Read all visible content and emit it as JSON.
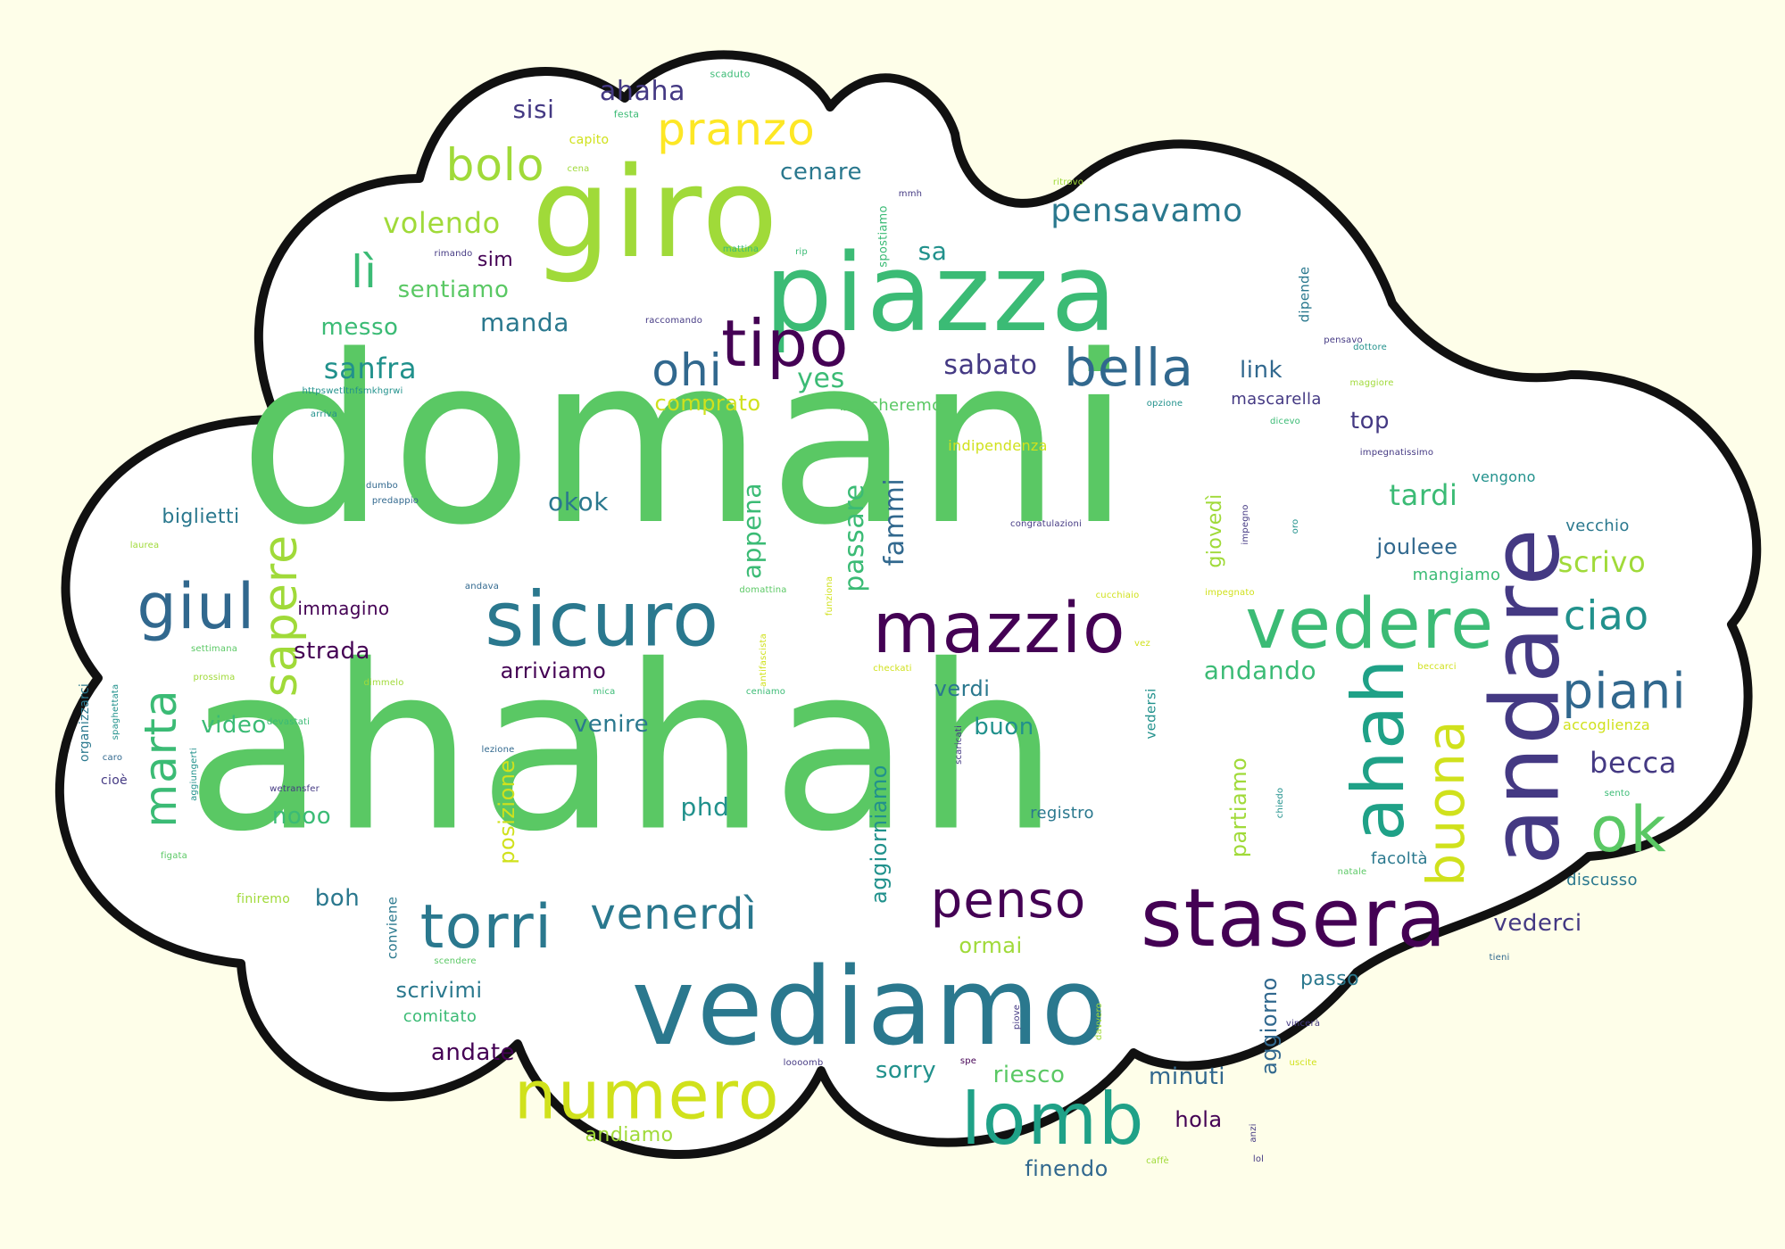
{
  "colors": {
    "background": "#fefee9",
    "cloud_fill": "#ffffff",
    "cloud_outline": "#111111",
    "palette": [
      "#5ac864",
      "#a0da39",
      "#3bbb75",
      "#2a788e",
      "#443983",
      "#440154",
      "#21918c",
      "#fde725",
      "#31688e",
      "#1fa187",
      "#d0e11c"
    ]
  },
  "words": {
    "domani": "domani",
    "ahahah": "ahahah",
    "giro": "giro",
    "piazza": "piazza",
    "vediamo": "vediamo",
    "andare": "andare",
    "stasera": "stasera",
    "sicuro": "sicuro",
    "mazzio": "mazzio",
    "vedere": "vedere",
    "lomb": "lomb",
    "numero": "numero",
    "torri": "torri",
    "ahah": "ahah",
    "tipo": "tipo",
    "giul": "giul",
    "ok": "ok",
    "buona": "buona",
    "bella": "bella",
    "penso": "penso",
    "pranzo": "pranzo",
    "venerdi": "venerdì",
    "sapere": "sapere",
    "piani": "piani",
    "marta": "marta",
    "bolo": "bolo",
    "ohi": "ohi",
    "li": "lì",
    "ciao": "ciao",
    "pensavamo": "pensavamo",
    "volendo": "volendo",
    "sanfra": "sanfra",
    "sabato": "sabato",
    "tardi": "tardi",
    "scrivo": "scrivo",
    "becca": "becca",
    "ahaha": "ahaha",
    "sisi": "sisi",
    "cenare": "cenare",
    "sentiamo": "sentiamo",
    "manda": "manda",
    "messo": "messo",
    "sim": "sim",
    "sa": "sa",
    "yes": "yes",
    "link": "link",
    "comprato": "comprato",
    "top": "top",
    "mascarella": "mascarella",
    "okok": "okok",
    "appena": "appena",
    "passare": "passare",
    "fammi": "fammi",
    "giovedi": "giovedì",
    "arriviamo": "arriviamo",
    "strada": "strada",
    "biglietti": "biglietti",
    "immagino": "immagino",
    "verdi": "verdi",
    "venire": "venire",
    "video": "video",
    "buon": "buon",
    "andando": "andando",
    "nooo": "nooo",
    "phd": "phd",
    "posizione": "posizione",
    "registro": "registro",
    "aggiorniamo": "aggiorniamo",
    "partiamo": "partiamo",
    "vederci": "vederci",
    "boh": "boh",
    "ormai": "ormai",
    "scrivimi": "scrivimi",
    "passo": "passo",
    "andate": "andate",
    "sorry": "sorry",
    "riesco": "riesco",
    "minuti": "minuti",
    "hola": "hola",
    "andiamo": "andiamo",
    "finendo": "finendo",
    "aggiorno": "aggiorno",
    "discusso": "discusso",
    "facolta": "facoltà",
    "vecchio": "vecchio",
    "mangiamo": "mangiamo",
    "vengono": "vengono",
    "joulee": "jouleee",
    "accoglienza": "accoglienza",
    "comitato": "comitato",
    "beccheremo": "beccheremo",
    "indipendenza": "indipendenza",
    "capito": "capito",
    "festa": "festa",
    "scaduto": "scaduto",
    "mattina": "mattina",
    "rip": "rip",
    "raccomando": "raccomando",
    "rimando": "rimando",
    "cena": "cena",
    "mmh": "mmh",
    "ritrovo": "ritrovo",
    "spostiamo": "spostiamo",
    "dipende": "dipende",
    "pensavo": "pensavo",
    "dottore": "dottore",
    "impegnatissimo": "impegnatissimo",
    "maggiore": "maggiore",
    "opzione": "opzione",
    "dicevo": "dicevo",
    "httpswetransfer": "httpswetltnfsmkhgrwi",
    "arriva": "arriva",
    "dumbo": "dumbo",
    "predappio": "predappio",
    "congratulazioni": "congratulazioni",
    "impegno": "impegno",
    "oro": "oro",
    "laurea": "laurea",
    "andava": "andava",
    "domattina": "domattina",
    "funziona": "funziona",
    "cucchiaio": "cucchiaio",
    "impegnato": "impegnato",
    "settimana": "settimana",
    "antifascista": "antifascista",
    "vez": "vez",
    "checkati": "checkati",
    "beccarci": "beccarci",
    "prossima": "prossima",
    "dimmelo": "dimmelo",
    "mica": "mica",
    "ceniamo": "ceniamo",
    "organizzarci": "organizzarci",
    "spaghettata": "spaghettata",
    "devastati": "devastati",
    "vedersi": "vedersi",
    "caro": "caro",
    "scaricati": "scaricati",
    "lezione": "lezione",
    "aggiungerti": "aggiungerti",
    "cioe": "cioè",
    "wetransfer": "wetransfer",
    "chiedo": "chiedo",
    "sento": "sento",
    "figata": "figata",
    "natale": "natale",
    "finiremo": "finiremo",
    "conviene": "conviene",
    "tieni": "tieni",
    "scendere": "scendere",
    "piove": "piove",
    "davvero": "davvero",
    "vincera": "vincerà",
    "spe": "spe",
    "loooomb": "loooomb",
    "anzi": "anzi",
    "lol": "lol",
    "caffe": "caffè",
    "uscite": "uscite"
  }
}
